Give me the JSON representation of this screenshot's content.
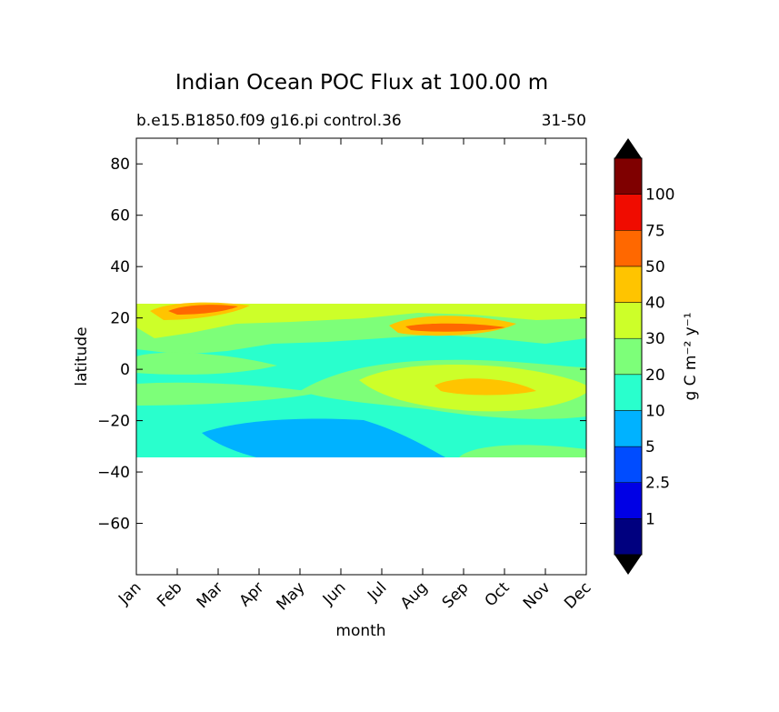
{
  "chart_data": {
    "type": "heatmap",
    "subtype": "filled-contour",
    "title": "Indian Ocean POC Flux at 100.00 m",
    "subtitle_left": "b.e15.B1850.f09 g16.pi control.36",
    "subtitle_right": "31-50",
    "xlabel": "month",
    "ylabel": "latitude",
    "x_categories": [
      "Jan",
      "Feb",
      "Mar",
      "Apr",
      "May",
      "Jun",
      "Jul",
      "Aug",
      "Sep",
      "Oct",
      "Nov",
      "Dec"
    ],
    "y_ticks": [
      80,
      60,
      40,
      20,
      0,
      -20,
      -40,
      -60
    ],
    "ylim": [
      -80,
      90
    ],
    "data_lat_range": [
      -34,
      25
    ],
    "colorbar": {
      "label": "g C m⁻² y⁻¹",
      "levels": [
        0,
        1,
        2.5,
        5,
        10,
        20,
        30,
        40,
        50,
        75,
        100,
        125
      ],
      "tick_labels": [
        "1",
        "2.5",
        "5",
        "10",
        "20",
        "30",
        "40",
        "50",
        "75",
        "100"
      ],
      "colors": [
        "#00007f",
        "#0000e5",
        "#004cff",
        "#00b2ff",
        "#29ffcd",
        "#7dff79",
        "#cdff29",
        "#ffc400",
        "#ff6800",
        "#f00c00",
        "#7f0000"
      ],
      "under_color": "#000000",
      "over_color": "#000000"
    }
  }
}
